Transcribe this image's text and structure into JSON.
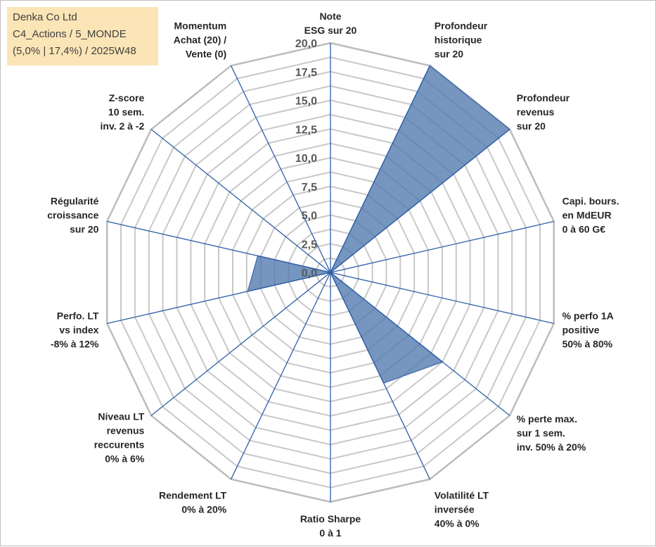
{
  "info": {
    "company": "Denka Co Ltd",
    "portfolio": "C4_Actions / 5_MONDE",
    "stats": "(5,0% | 17,4%) / 2025W48"
  },
  "colors": {
    "fill": "#4f78ae",
    "stroke": "#4a72b0",
    "spoke": "#2e5fa8",
    "grid": "#c8c8c8",
    "gridOuter": "#bcbcbc",
    "infoBg": "#fbe5b6"
  },
  "chart_data": {
    "type": "radar",
    "title": "",
    "rmin": 0,
    "rmax": 20,
    "grid_step": 1.25,
    "radial_ticks": [
      "0,0",
      "2,5",
      "5,0",
      "7,5",
      "10,0",
      "12,5",
      "15,0",
      "17,5",
      "20,0"
    ],
    "axes": [
      {
        "label": [
          "Note",
          "ESG sur 20"
        ],
        "value": 0
      },
      {
        "label": [
          "Profondeur",
          "historique",
          "sur 20"
        ],
        "value": 20
      },
      {
        "label": [
          "Profondeur",
          "revenus",
          "sur 20"
        ],
        "value": 20
      },
      {
        "label": [
          "Capi. bours.",
          "en MdEUR",
          "0 à 60 G€"
        ],
        "value": 0
      },
      {
        "label": [
          "% perfo 1A",
          "positive",
          "50% à 80%"
        ],
        "value": 0
      },
      {
        "label": [
          "% perte max.",
          "sur 1 sem.",
          "inv. 50% à 20%"
        ],
        "value": 12.5
      },
      {
        "label": [
          "Volatilité LT",
          "inversée",
          "40% à 0%"
        ],
        "value": 10.7
      },
      {
        "label": [
          "Ratio Sharpe",
          "0 à 1"
        ],
        "value": 0
      },
      {
        "label": [
          "Rendement LT",
          "0% à 20%"
        ],
        "value": 0
      },
      {
        "label": [
          "Niveau LT",
          "revenus",
          "reccurents",
          "0% à 6%"
        ],
        "value": 0
      },
      {
        "label": [
          "Perfo. LT",
          "vs index",
          "-8% à 12%"
        ],
        "value": 7.4
      },
      {
        "label": [
          "Régularité",
          "croissance",
          "sur 20"
        ],
        "value": 6.5
      },
      {
        "label": [
          "Z-score",
          "10 sem.",
          "inv. 2 à -2"
        ],
        "value": 0
      },
      {
        "label": [
          "Momentum",
          "Achat (20) /",
          "Vente (0)"
        ],
        "value": 0
      }
    ]
  }
}
